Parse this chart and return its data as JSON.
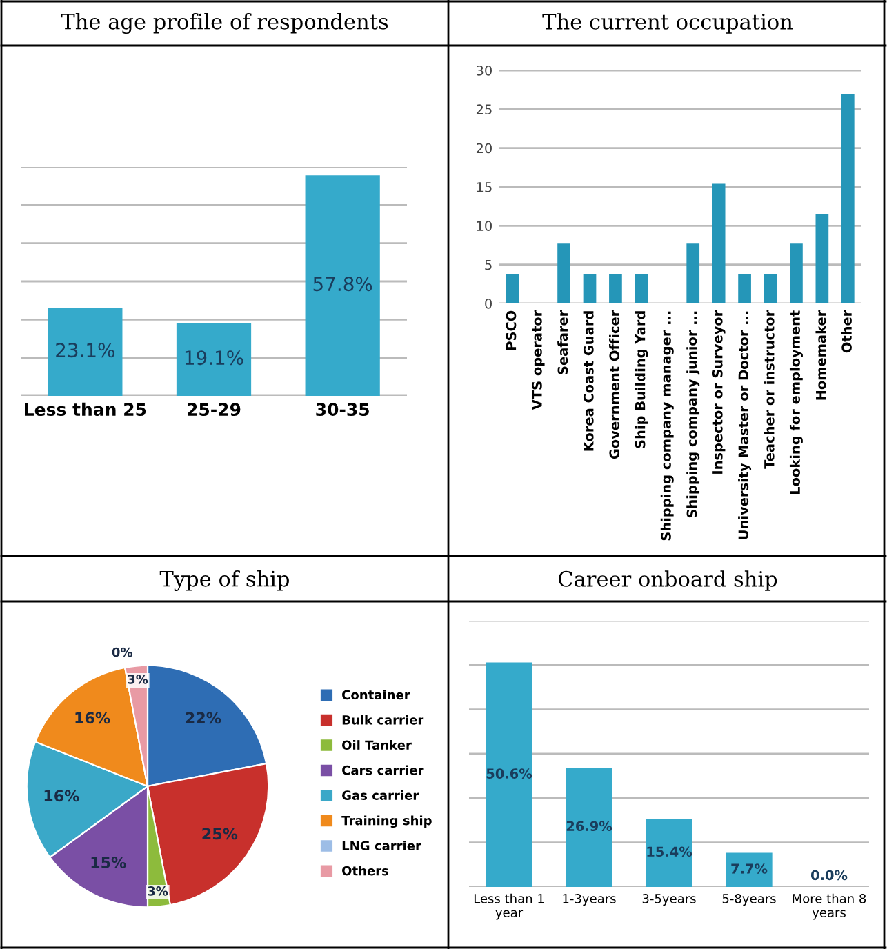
{
  "chart_data": [
    {
      "type": "bar",
      "title": "The age profile of respondents",
      "categories": [
        "Less than 25",
        "25-29",
        "30-35"
      ],
      "values": [
        23.1,
        19.1,
        57.8
      ],
      "value_labels": [
        "23.1%",
        "19.1%",
        "57.8%"
      ],
      "color": "#35aacb",
      "ylim": [
        0,
        60
      ],
      "yticks": [
        {
          "value": 0,
          "label": null
        },
        {
          "value": 10,
          "label": null
        },
        {
          "value": 20,
          "label": null
        },
        {
          "value": 30,
          "label": null
        },
        {
          "value": 40,
          "label": null
        },
        {
          "value": 50,
          "label": null
        },
        {
          "value": 60,
          "label": null
        }
      ],
      "grid": "y"
    },
    {
      "type": "bar",
      "title": "The current occupation",
      "categories": [
        "PSCO",
        "VTS operator",
        "Seafarer",
        "Korea Coast Guard",
        "Government Officer",
        "Ship Building Yard",
        "Shipping company manager ...",
        "Shipping company junior ...",
        "Inspector or Surveyor",
        "University Master or Doctor ...",
        "Teacher or instructor",
        "Looking for employment",
        "Homemaker",
        "Other"
      ],
      "values": [
        3.8,
        0,
        7.7,
        3.8,
        3.8,
        3.8,
        0,
        7.7,
        15.4,
        3.8,
        3.8,
        7.7,
        11.5,
        26.9
      ],
      "color": "#2596b8",
      "ylim": [
        0,
        30
      ],
      "yticks": [
        0,
        5,
        10,
        15,
        20,
        25,
        30
      ],
      "grid": "y"
    },
    {
      "type": "pie",
      "title": "Type of ship",
      "categories": [
        "Container",
        "Bulk carrier",
        "Oil Tanker",
        "Cars carrier",
        "Gas carrier",
        "Training ship",
        "LNG carrier",
        "Others"
      ],
      "values": [
        22,
        25,
        3,
        15,
        16,
        16,
        0,
        3
      ],
      "value_labels": [
        "22%",
        "25%",
        "3%",
        "15%",
        "16%",
        "16%",
        "0%",
        "3%"
      ],
      "colors": [
        "#2e6db4",
        "#c8302c",
        "#8dbb3c",
        "#7a4fa5",
        "#3aa8c8",
        "#f08a1c",
        "#9dbde6",
        "#e89aa4"
      ],
      "legend": "right"
    },
    {
      "type": "bar",
      "title": "Career onboard ship",
      "categories": [
        "Less than 1\nyear",
        "1-3years",
        "3-5years",
        "5-8years",
        "More than 8\nyears"
      ],
      "values": [
        50.6,
        26.9,
        15.4,
        7.7,
        0.0
      ],
      "value_labels": [
        "50.6%",
        "26.9%",
        "15.4%",
        "7.7%",
        "0.0%"
      ],
      "color": "#35aacb",
      "ylim": [
        0,
        60
      ],
      "yticks": [
        {
          "value": 0,
          "label": null
        },
        {
          "value": 10,
          "label": null
        },
        {
          "value": 20,
          "label": null
        },
        {
          "value": 30,
          "label": null
        },
        {
          "value": 40,
          "label": null
        },
        {
          "value": 50,
          "label": null
        },
        {
          "value": 60,
          "label": null
        }
      ],
      "grid": "y"
    }
  ]
}
